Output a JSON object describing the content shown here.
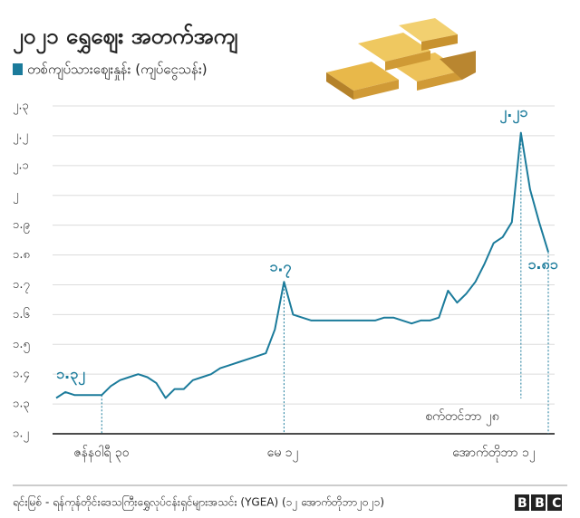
{
  "chart_data": {
    "type": "line",
    "title": "၂၀၂၁ ရွှေဈေး အတက်အကျ",
    "source": "ရင်းမြစ် - ရန်ကုန်တိုင်းဒေသကြီးရွှေလုပ်ငန်းရှင်များအသင်း (YGEA) (၁၂ အောက်တိုဘာ၂၀၂၁)",
    "logo": "BBC",
    "ylim": [
      1.2,
      2.3
    ],
    "yticks": [
      {
        "value": 1.2,
        "label": "၁.၂"
      },
      {
        "value": 1.3,
        "label": "၁.၃"
      },
      {
        "value": 1.4,
        "label": "၁.၄"
      },
      {
        "value": 1.5,
        "label": "၁.၅"
      },
      {
        "value": 1.6,
        "label": "၁.၆"
      },
      {
        "value": 1.7,
        "label": "၁.၇"
      },
      {
        "value": 1.8,
        "label": "၁.၈"
      },
      {
        "value": 1.9,
        "label": "၁.၉"
      },
      {
        "value": 2,
        "label": "၂"
      },
      {
        "value": 2.1,
        "label": "၂.၁"
      },
      {
        "value": 2.2,
        "label": "၂.၂"
      },
      {
        "value": 2.3,
        "label": "၂.၃"
      }
    ],
    "grid": true,
    "categories": [
      null,
      null,
      null,
      null,
      null,
      "ဇန်နဝါရီ ၃၀",
      null,
      null,
      null,
      null,
      null,
      null,
      null,
      null,
      null,
      null,
      null,
      null,
      null,
      null,
      null,
      null,
      null,
      null,
      null,
      "မေ ၁၂",
      null,
      null,
      null,
      null,
      null,
      null,
      null,
      null,
      null,
      null,
      null,
      null,
      null,
      null,
      null,
      null,
      null,
      null,
      null,
      null,
      null,
      null,
      null,
      null,
      null,
      "စက်တင်ဘာ ၂၈",
      null,
      null,
      "အောက်တိုဘာ ၁၂"
    ],
    "series": [
      {
        "name": "တစ်ကျပ်သားဈေးနှုန်း (ကျပ်ငွေသန်း)",
        "color": "#1b7b9b",
        "values": [
          1.32,
          1.34,
          1.33,
          1.33,
          1.33,
          1.33,
          1.36,
          1.38,
          1.39,
          1.4,
          1.39,
          1.37,
          1.32,
          1.35,
          1.35,
          1.38,
          1.39,
          1.4,
          1.42,
          1.43,
          1.44,
          1.45,
          1.46,
          1.47,
          1.55,
          1.71,
          1.6,
          1.59,
          1.58,
          1.58,
          1.58,
          1.58,
          1.58,
          1.58,
          1.58,
          1.58,
          1.59,
          1.59,
          1.58,
          1.57,
          1.58,
          1.58,
          1.59,
          1.68,
          1.64,
          1.67,
          1.71,
          1.77,
          1.84,
          1.86,
          1.91,
          2.21,
          2.02,
          1.91,
          1.81
        ],
        "value_labels": [
          "၁.၃၂",
          null,
          null,
          null,
          null,
          null,
          null,
          null,
          null,
          null,
          null,
          null,
          null,
          null,
          null,
          null,
          null,
          null,
          null,
          null,
          null,
          null,
          null,
          null,
          null,
          "၁.၇",
          null,
          null,
          null,
          null,
          null,
          null,
          null,
          null,
          null,
          null,
          null,
          null,
          null,
          null,
          null,
          null,
          null,
          null,
          null,
          null,
          null,
          null,
          null,
          null,
          null,
          "၂.၂၁",
          null,
          null,
          "၁.၈၁"
        ]
      }
    ]
  }
}
